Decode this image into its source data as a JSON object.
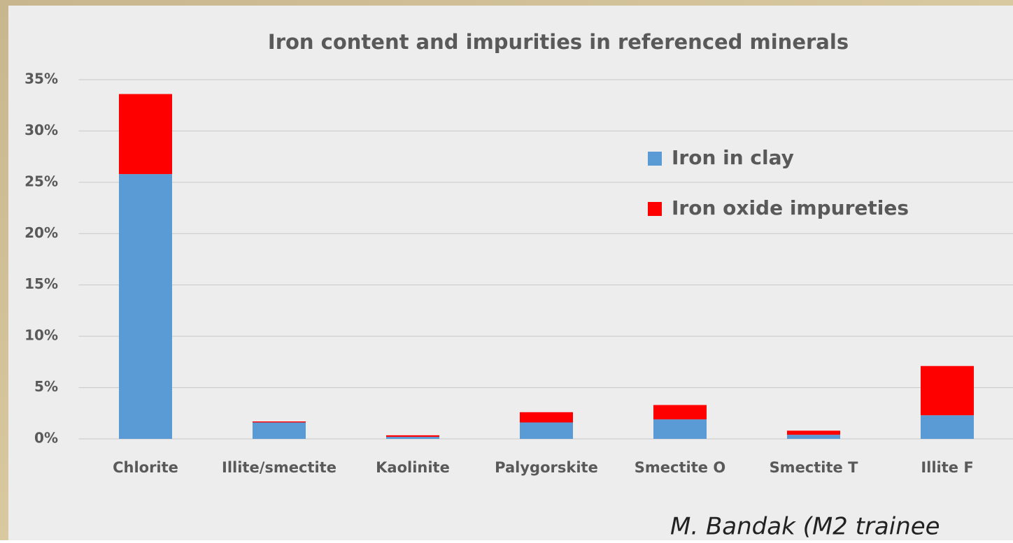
{
  "chart_data": {
    "type": "stacked_bar",
    "title": "Iron content and impurities in referenced minerals",
    "categories": [
      "Chlorite",
      "Illite/smectite",
      "Kaolinite",
      "Palygorskite",
      "Smectite O",
      "Smectite T",
      "Illite F"
    ],
    "series": [
      {
        "name": "Iron in clay",
        "color": "#5b9bd5",
        "values": [
          25.8,
          1.6,
          0.2,
          1.6,
          1.9,
          0.4,
          2.3
        ]
      },
      {
        "name": "Iron oxide impureties",
        "color": "#ff0000",
        "values": [
          7.8,
          0.1,
          0.15,
          1.0,
          1.4,
          0.4,
          4.8
        ]
      }
    ],
    "ylim": [
      0,
      35
    ],
    "yticks": [
      {
        "value": 0,
        "label": "0%"
      },
      {
        "value": 5,
        "label": "5%"
      },
      {
        "value": 10,
        "label": "10%"
      },
      {
        "value": 15,
        "label": "15%"
      },
      {
        "value": 20,
        "label": "20%"
      },
      {
        "value": 25,
        "label": "25%"
      },
      {
        "value": 30,
        "label": "30%"
      },
      {
        "value": 35,
        "label": "35%"
      }
    ],
    "grid": true,
    "legend": "upper-right",
    "annotation": "M. Bandak (M2 trainee"
  }
}
